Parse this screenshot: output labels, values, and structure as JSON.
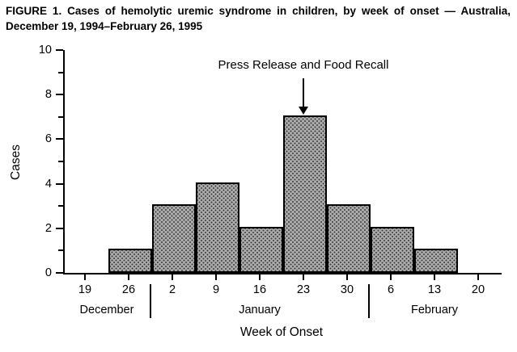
{
  "title": "FIGURE 1. Cases of hemolytic uremic syndrome in children, by week of onset — Australia, December 19, 1994–February 26, 1995",
  "chart_data": {
    "type": "bar",
    "title": "Cases of hemolytic uremic syndrome in children, by week of onset",
    "categories": [
      "19",
      "26",
      "2",
      "9",
      "16",
      "23",
      "30",
      "6",
      "13",
      "20"
    ],
    "values": [
      0,
      1,
      3,
      4,
      2,
      7,
      3,
      2,
      1,
      0
    ],
    "xlabel": "Week of Onset",
    "ylabel": "Cases",
    "ylim": [
      0,
      10
    ],
    "yticks_major": [
      0,
      2,
      4,
      6,
      8,
      10
    ],
    "yticks_minor": [
      1,
      3,
      5,
      7,
      9
    ],
    "grid": "off",
    "bar_style": "gray stippled fill, black outline, contiguous histogram bars",
    "annotation": {
      "text": "Press Release and Food Recall",
      "target_category": "23",
      "arrow": "down"
    },
    "month_groups": [
      {
        "label": "December",
        "categories": [
          "19",
          "26"
        ]
      },
      {
        "label": "January",
        "categories": [
          "2",
          "9",
          "16",
          "23",
          "30"
        ]
      },
      {
        "label": "February",
        "categories": [
          "6",
          "13",
          "20"
        ]
      }
    ]
  }
}
